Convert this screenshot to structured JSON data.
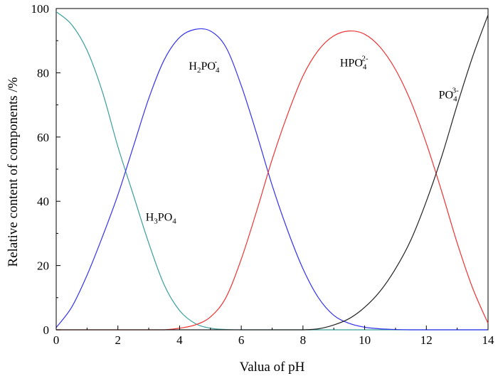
{
  "chart_data": {
    "type": "line",
    "title": "",
    "xlabel": "Valua of pH",
    "ylabel": "Relative content of components /%",
    "xlim": [
      0,
      14
    ],
    "ylim": [
      0,
      100
    ],
    "xticks": [
      "0",
      "2",
      "4",
      "6",
      "8",
      "10",
      "12",
      "14"
    ],
    "yticks": [
      "0",
      "20",
      "40",
      "60",
      "80",
      "100"
    ],
    "grid": false,
    "legend": "none",
    "x": [
      0,
      0.5,
      1,
      1.5,
      2,
      2.5,
      3,
      3.5,
      4,
      4.5,
      5,
      5.5,
      6,
      6.5,
      7,
      7.5,
      8,
      8.5,
      9,
      9.5,
      10,
      10.5,
      11,
      11.5,
      12,
      12.5,
      13,
      13.5,
      14
    ],
    "series": [
      {
        "name": "H3PO4",
        "label": {
          "base": "H",
          "sub1": "3",
          "mid": "PO",
          "sub2": "4",
          "sup": ""
        },
        "color": "#3a9e9e",
        "values": [
          99,
          95,
          87,
          74,
          57,
          42,
          27,
          14,
          6,
          2,
          0.5,
          0.1,
          0,
          0,
          0,
          0,
          0,
          0,
          0,
          0,
          0,
          0,
          0,
          0,
          0,
          0,
          0,
          0,
          0
        ]
      },
      {
        "name": "H2PO4-",
        "label": {
          "base": "H",
          "sub1": "2",
          "mid": "PO",
          "sub2": "4",
          "sup": "-"
        },
        "color": "#3333ee",
        "values": [
          0.7,
          7,
          17,
          29,
          42,
          57,
          72,
          84,
          91,
          93.5,
          93,
          88,
          76,
          61,
          45,
          31,
          19,
          10,
          4.5,
          2,
          0.8,
          0.3,
          0.1,
          0,
          0,
          0,
          0,
          0,
          0
        ]
      },
      {
        "name": "HPO42-",
        "label": {
          "base": "",
          "sub1": "",
          "mid": "HPO",
          "sub2": "4",
          "sup": "2-"
        },
        "color": "#ee3333",
        "values": [
          0,
          0,
          0,
          0,
          0,
          0,
          0,
          0,
          0.5,
          1.5,
          4,
          10,
          22,
          37,
          53,
          67,
          79,
          87,
          91.5,
          93,
          92,
          88,
          81,
          71,
          58,
          43,
          27,
          13,
          2
        ]
      },
      {
        "name": "PO43-",
        "label": {
          "base": "",
          "sub1": "",
          "mid": "PO",
          "sub2": "4",
          "sup": "3-"
        },
        "color": "#222222",
        "values": [
          0,
          0,
          0,
          0,
          0,
          0,
          0,
          0,
          0,
          0,
          0,
          0,
          0,
          0,
          0,
          0,
          0,
          0.3,
          1.5,
          3.5,
          7,
          12,
          19,
          28,
          40,
          54,
          70,
          85,
          98
        ]
      }
    ]
  }
}
